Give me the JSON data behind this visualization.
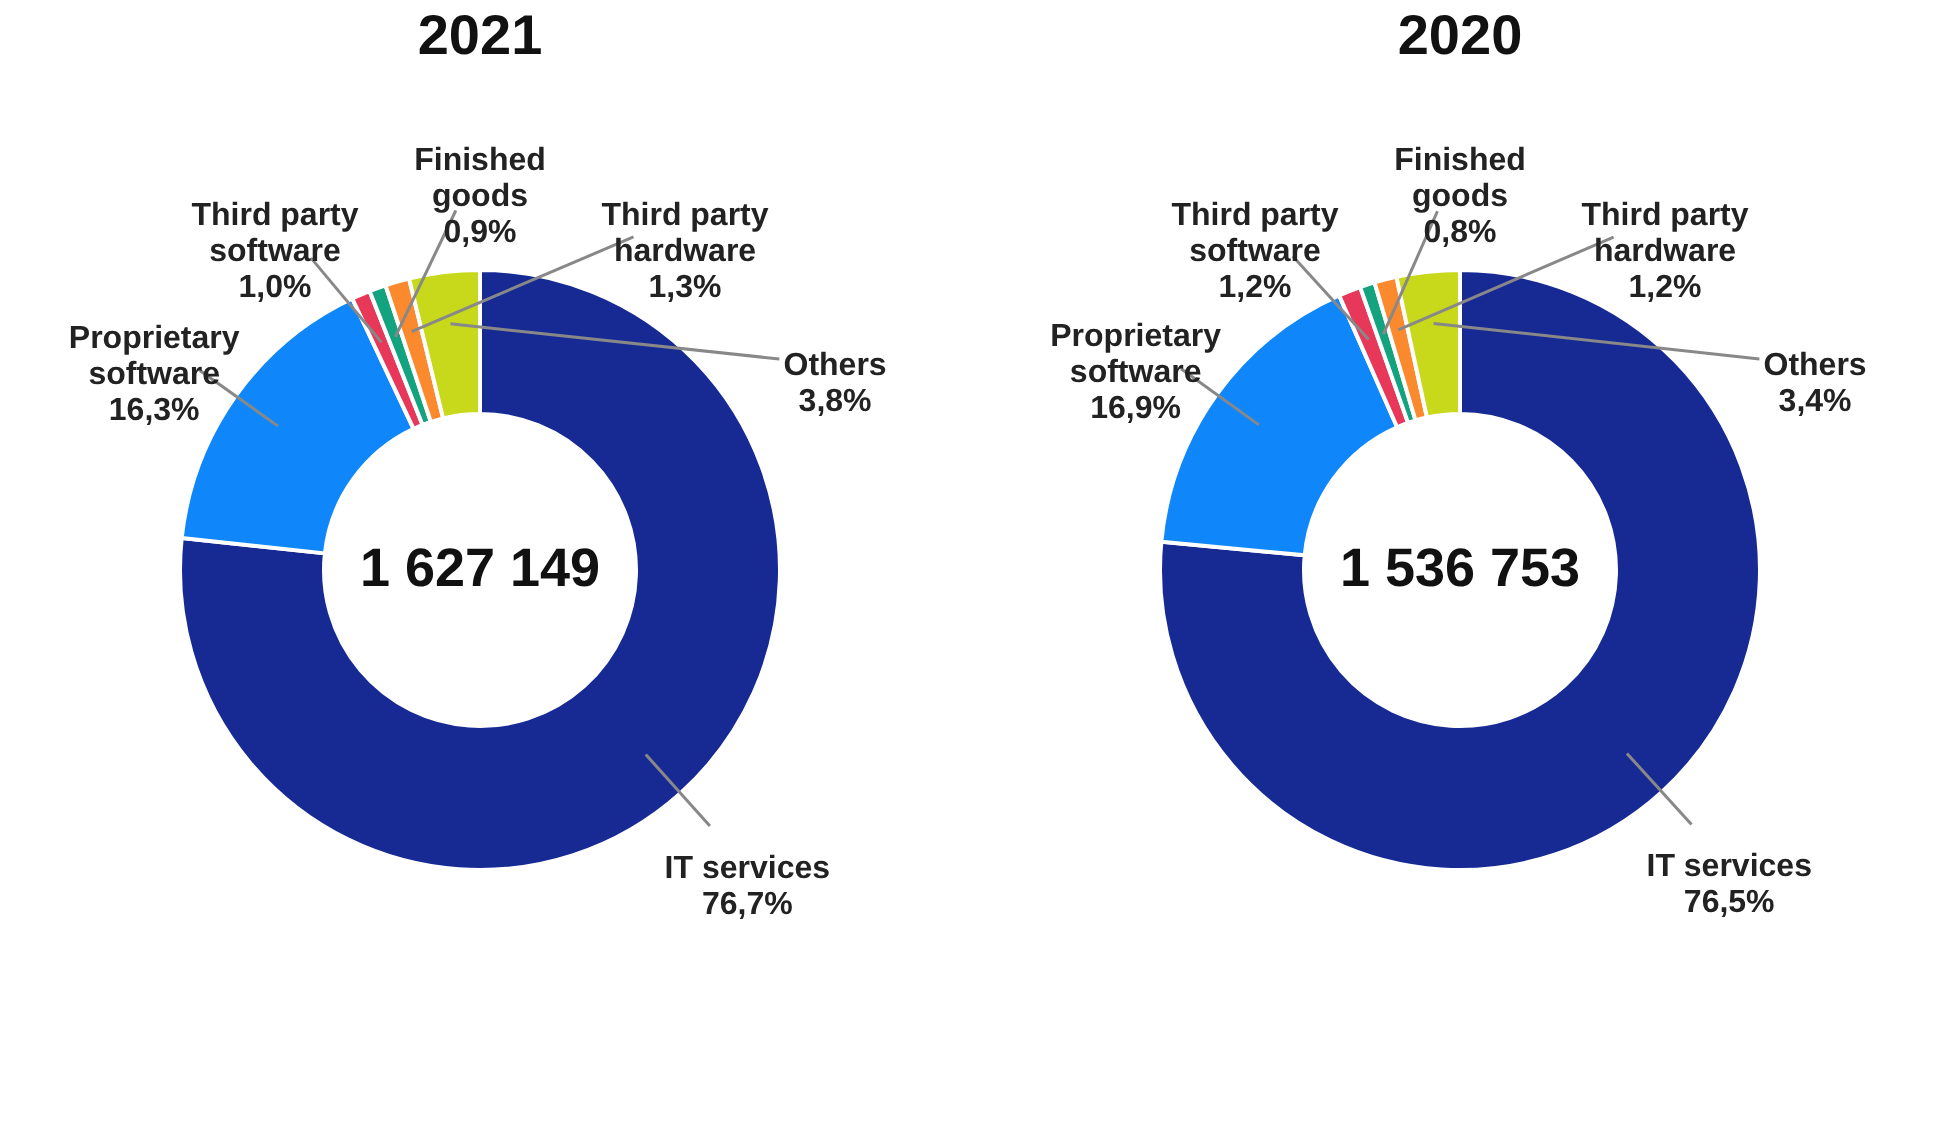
{
  "chart_data": [
    {
      "type": "donut",
      "title": "2021",
      "categories": [
        "IT services",
        "Proprietary software",
        "Third party software",
        "Finished goods",
        "Third party hardware",
        "Others"
      ],
      "values": [
        76.7,
        16.3,
        1.0,
        0.9,
        1.3,
        3.8
      ],
      "colors": [
        "#172a94",
        "#0f87fb",
        "#e8385a",
        "#14a37f",
        "#fb8a2e",
        "#c8d81b"
      ],
      "value_labels": [
        "76,7%",
        "16,3%",
        "1,0%",
        "0,9%",
        "1,3%",
        "3,8%"
      ],
      "annotations": [
        "1 627 149"
      ]
    },
    {
      "type": "donut",
      "title": "2020",
      "categories": [
        "IT services",
        "Proprietary software",
        "Third party software",
        "Finished goods",
        "Third party hardware",
        "Others"
      ],
      "values": [
        76.5,
        16.9,
        1.2,
        0.8,
        1.2,
        3.4
      ],
      "colors": [
        "#172a94",
        "#0f87fb",
        "#e8385a",
        "#14a37f",
        "#fb8a2e",
        "#c8d81b"
      ],
      "value_labels": [
        "76,5%",
        "16,9%",
        "1,2%",
        "0,8%",
        "1,2%",
        "3,4%"
      ],
      "annotations": [
        "1 536 753"
      ]
    }
  ]
}
